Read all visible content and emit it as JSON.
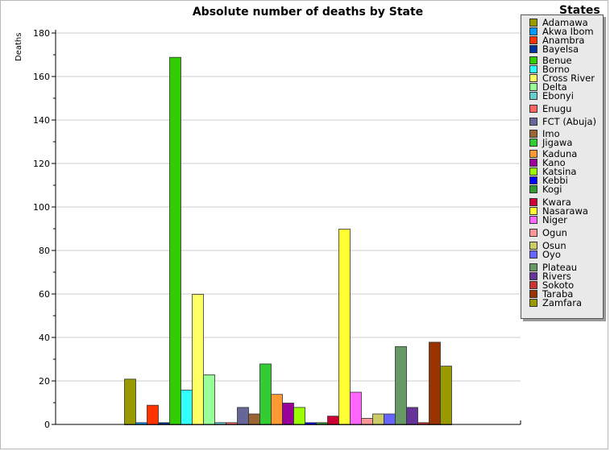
{
  "chart_data": {
    "type": "bar",
    "title": "Absolute number of deaths by State",
    "ylabel": "Deaths",
    "xlabel": "",
    "ylim": [
      0,
      180
    ],
    "yticks": [
      0,
      20,
      40,
      60,
      80,
      100,
      120,
      140,
      160,
      180
    ],
    "grid": true,
    "legend_title": "States",
    "legend_position": "right",
    "categories": [
      "Adamawa",
      "Akwa Ibom",
      "Anambra",
      "Bayelsa",
      "Benue",
      "Borno",
      "Cross River",
      "Delta",
      "Ebonyi",
      "Enugu",
      "FCT (Abuja)",
      "Imo",
      "Jigawa",
      "Kaduna",
      "Kano",
      "Katsina",
      "Kebbi",
      "Kogi",
      "Kwara",
      "Nasarawa",
      "Niger",
      "Ogun",
      "Osun",
      "Oyo",
      "Plateau",
      "Rivers",
      "Sokoto",
      "Taraba",
      "Zamfara"
    ],
    "values": [
      21,
      1,
      9,
      1,
      169,
      16,
      60,
      23,
      1,
      1,
      8,
      5,
      28,
      14,
      10,
      8,
      1,
      1,
      4,
      90,
      15,
      3,
      5,
      5,
      36,
      8,
      1,
      38,
      27
    ],
    "colors": [
      "#999900",
      "#0099ff",
      "#ff3300",
      "#003399",
      "#33cc00",
      "#33ffff",
      "#ffff66",
      "#99ff99",
      "#66cccc",
      "#ff6666",
      "#666699",
      "#996633",
      "#33cc33",
      "#ff9933",
      "#990099",
      "#99ff00",
      "#0000ff",
      "#339933",
      "#cc0033",
      "#ffff33",
      "#ff66ff",
      "#ff9999",
      "#cccc66",
      "#6666ff",
      "#669966",
      "#663399",
      "#cc3333",
      "#993300",
      "#999900"
    ]
  }
}
